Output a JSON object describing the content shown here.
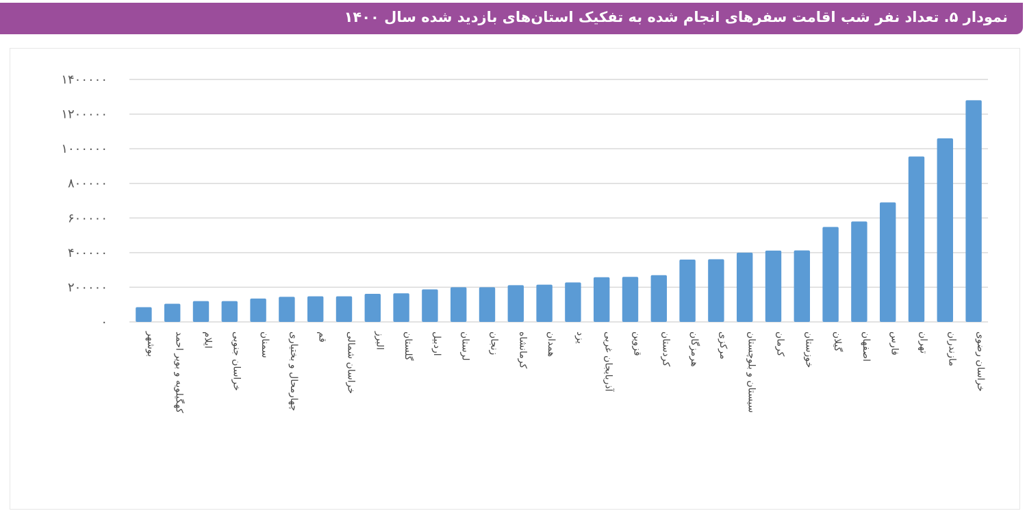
{
  "title": "نمودار ۵. تعداد نفر شب اقامت سفرهای انجام شده به تفکیک استان‌های بازدید شده سال ۱۴۰۰",
  "colors": {
    "header": "#9b4d9b",
    "bar": "#5b9bd5",
    "grid": "#d9d9d9"
  },
  "chart_data": {
    "type": "bar",
    "title": "نمودار ۵. تعداد نفر شب اقامت سفرهای انجام شده به تفکیک استان‌های بازدید شده سال ۱۴۰۰",
    "xlabel": "",
    "ylabel": "",
    "ylim": [
      0,
      1400000
    ],
    "grid": true,
    "yticks": [
      0,
      200000,
      400000,
      600000,
      800000,
      1000000,
      1200000,
      1400000
    ],
    "ytick_labels": [
      "۰",
      "۲۰۰۰۰۰",
      "۴۰۰۰۰۰",
      "۶۰۰۰۰۰",
      "۸۰۰۰۰۰",
      "۱۰۰۰۰۰۰",
      "۱۲۰۰۰۰۰",
      "۱۴۰۰۰۰۰"
    ],
    "categories": [
      "بوشهر",
      "کهگیلویه و بویر احمد",
      "ایلام",
      "خراسان جنوبی",
      "سمنان",
      "چهارمحال و بختیاری",
      "قم",
      "خراسان شمالی",
      "البرز",
      "گلستان",
      "اردبیل",
      "لرستان",
      "زنجان",
      "کرمانشاه",
      "همدان",
      "یزد",
      "آذربایجان غربی",
      "قزوین",
      "کردستان",
      "هرمزگان",
      "مرکزی",
      "سیستان و بلوچستان",
      "کرمان",
      "خوزستان",
      "گیلان",
      "اصفهان",
      "فارس",
      "تهران",
      "مازندران",
      "خراسان رضوی"
    ],
    "values": [
      85000,
      105000,
      120000,
      120000,
      135000,
      145000,
      148000,
      148000,
      162000,
      165000,
      188000,
      200000,
      200000,
      212000,
      215000,
      228000,
      258000,
      260000,
      270000,
      360000,
      362000,
      400000,
      412000,
      413000,
      548000,
      580000,
      690000,
      955000,
      1060000,
      1280000
    ]
  }
}
